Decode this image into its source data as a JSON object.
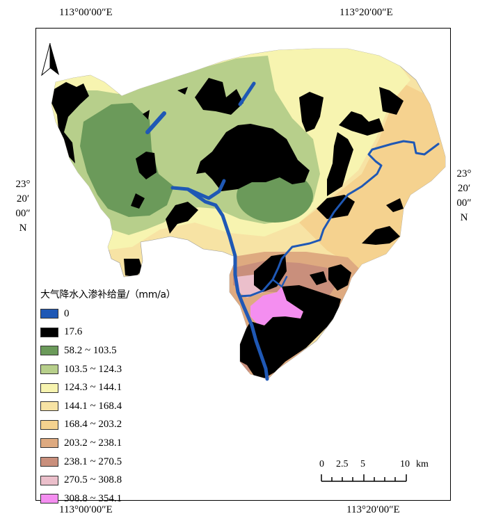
{
  "coordinates": {
    "top_left": "113°00′00″E",
    "top_right": "113°20′00″E",
    "bottom_left": "113°00′00″E",
    "bottom_right": "113°20′00″E",
    "left": [
      "23°",
      "20′",
      "00″",
      "N"
    ],
    "right": [
      "23°",
      "20′",
      "00″",
      "N"
    ]
  },
  "legend": {
    "title": "大气降水入渗补给量/（mm/a）",
    "items": [
      {
        "label": "0",
        "color": "#1f58b5"
      },
      {
        "label": "17.6",
        "color": "#000000"
      },
      {
        "label": "58.2 ~ 103.5",
        "color": "#6b9a5a"
      },
      {
        "label": "103.5 ~ 124.3",
        "color": "#b7cf8b"
      },
      {
        "label": "124.3 ~ 144.1",
        "color": "#f7f4b0"
      },
      {
        "label": "144.1 ~ 168.4",
        "color": "#f7e3a4"
      },
      {
        "label": "168.4 ~ 203.2",
        "color": "#f5d28f"
      },
      {
        "label": "203.2 ~ 238.1",
        "color": "#deaa80"
      },
      {
        "label": "238.1 ~ 270.5",
        "color": "#c98f7c"
      },
      {
        "label": "270.5 ~ 308.8",
        "color": "#ebbfcb"
      },
      {
        "label": "308.8 ~ 354.1",
        "color": "#f48ef0"
      }
    ]
  },
  "scale_bar": {
    "ticks": [
      "0",
      "2.5",
      "5",
      "10"
    ],
    "unit": "km"
  },
  "north_arrow": {
    "icon": "north-arrow-icon"
  }
}
